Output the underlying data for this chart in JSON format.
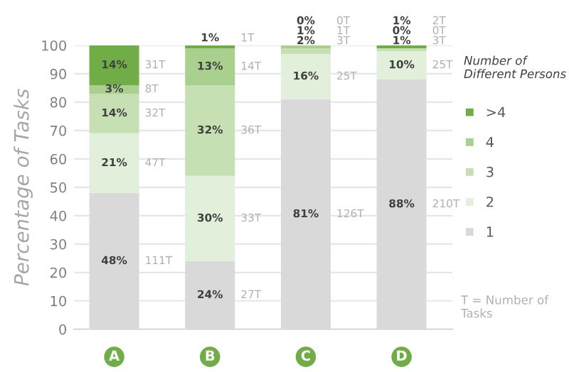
{
  "chart_data": {
    "type": "bar",
    "stacked": true,
    "ylabel": "Percentage of Tasks",
    "legend_title": "Number of Different Persons",
    "legend": "right",
    "grid": "y",
    "categories": [
      "A",
      "B",
      "C",
      "D"
    ],
    "ylim": [
      0,
      100
    ],
    "yticks": [
      0,
      10,
      20,
      30,
      40,
      50,
      60,
      70,
      80,
      90,
      100
    ],
    "series": [
      {
        "name": "1",
        "color": "#d9d9d9",
        "values": [
          48,
          24,
          81,
          88
        ],
        "value_labels": [
          "48%",
          "24%",
          "81%",
          "88%"
        ]
      },
      {
        "name": "2",
        "color": "#e2efda",
        "values": [
          21,
          30,
          16,
          10
        ],
        "value_labels": [
          "21%",
          "30%",
          "16%",
          "10%"
        ]
      },
      {
        "name": "3",
        "color": "#c6e0b4",
        "values": [
          14,
          32,
          2,
          1
        ],
        "value_labels": [
          "14%",
          "32%",
          "2%",
          "1%"
        ]
      },
      {
        "name": "4",
        "color": "#a9d08e",
        "values": [
          3,
          13,
          1,
          0
        ],
        "value_labels": [
          "3%",
          "13%",
          "1%",
          "0%"
        ]
      },
      {
        "name": ">4",
        "color": "#70ad47",
        "values": [
          14,
          1,
          0,
          1
        ],
        "value_labels": [
          "14%",
          "1%",
          "0%",
          "1%"
        ]
      }
    ],
    "annotations": [
      "111T",
      "47T",
      "32T",
      "8T",
      "31T",
      "27T",
      "33T",
      "36T",
      "14T",
      "1T",
      "126T",
      "25T",
      "3T",
      "1T",
      "0T",
      "210T",
      "25T",
      "3T",
      "0T",
      "2T",
      "T = Number of Tasks"
    ]
  }
}
